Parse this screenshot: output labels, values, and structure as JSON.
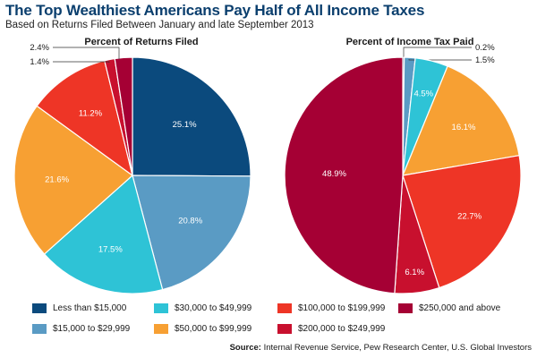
{
  "header": {
    "title": "The Top Wealthiest Americans Pay Half of All Income Taxes",
    "subtitle": "Based on Returns Filed Between January and late September 2013"
  },
  "source": {
    "label": "Source:",
    "text": "Internal Revenue Service, Pew Research Center, U.S. Global Investors"
  },
  "chart_data": [
    {
      "type": "pie",
      "title": "Percent of Returns Filed",
      "categories": [
        "Less than $15,000",
        "$15,000 to $29,999",
        "$30,000 to $49,999",
        "$50,000 to $99,999",
        "$100,000 to $199,999",
        "$200,000 to $249,999",
        "$250,000 and above"
      ],
      "values": [
        25.1,
        20.8,
        17.5,
        21.6,
        11.2,
        1.4,
        2.4
      ],
      "labels": [
        "25.1%",
        "20.8%",
        "17.5%",
        "21.6%",
        "11.2%",
        "1.4%",
        "2.4%"
      ],
      "start": "12 o'clock",
      "direction": "clockwise"
    },
    {
      "type": "pie",
      "title": "Percent of Income Tax Paid",
      "categories": [
        "Less than $15,000",
        "$15,000 to $29,999",
        "$30,000 to $49,999",
        "$50,000 to $99,999",
        "$100,000 to $199,999",
        "$200,000 to $249,999",
        "$250,000 and above"
      ],
      "values": [
        0.2,
        1.5,
        4.5,
        16.1,
        22.7,
        6.1,
        48.9
      ],
      "labels": [
        "0.2%",
        "1.5%",
        "4.5%",
        "16.1%",
        "22.7%",
        "6.1%",
        "48.9%"
      ],
      "start": "12 o'clock",
      "direction": "clockwise"
    }
  ],
  "legend": {
    "placement": "bottom",
    "items": [
      {
        "label": "Less than $15,000",
        "color": "#0b4a7d"
      },
      {
        "label": "$15,000 to $29,999",
        "color": "#5a9bc4"
      },
      {
        "label": "$30,000 to $49,999",
        "color": "#2ec3d6"
      },
      {
        "label": "$50,000 to $99,999",
        "color": "#f7a033"
      },
      {
        "label": "$100,000 to $199,999",
        "color": "#ee3526"
      },
      {
        "label": "$200,000 to $249,999",
        "color": "#c8102e"
      },
      {
        "label": "$250,000 and above",
        "color": "#a50034"
      }
    ]
  }
}
